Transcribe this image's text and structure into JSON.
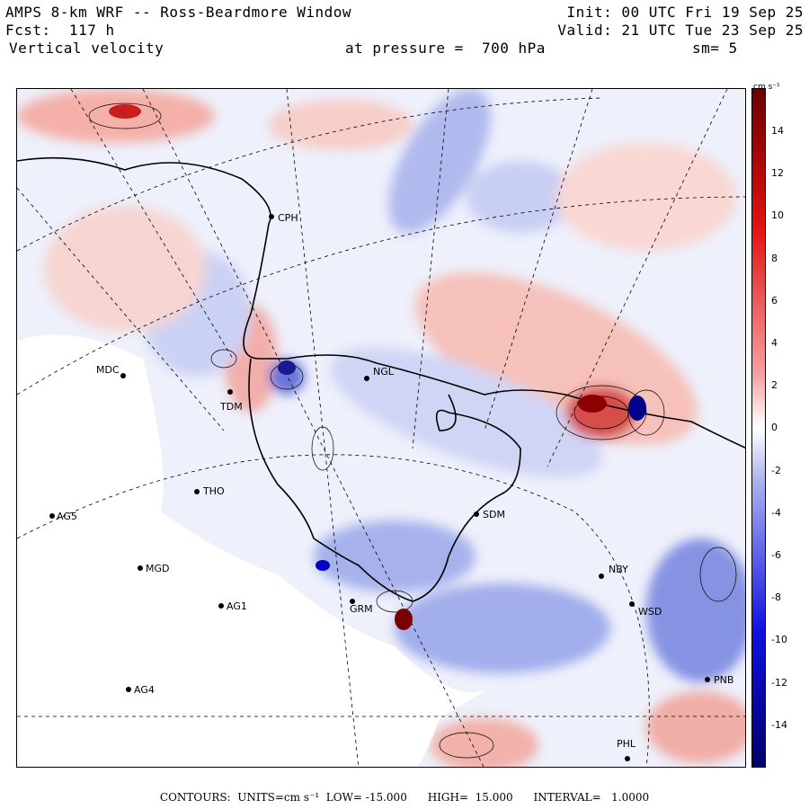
{
  "header": {
    "title": "AMPS 8-km WRF -- Ross-Beardmore Window",
    "forecast": "Fcst:  117 h",
    "field": "Vertical velocity",
    "pressure": "at pressure =  700 hPa",
    "init": "Init: 00 UTC Fri 19 Sep 25",
    "valid": "Valid: 21 UTC Tue 23 Sep 25",
    "smooth": "sm= 5"
  },
  "colorbar": {
    "units": "cm s⁻¹",
    "labels": [
      "14",
      "12",
      "10",
      "8",
      "6",
      "4",
      "2",
      "0",
      "-2",
      "-4",
      "-6",
      "-8",
      "-10",
      "-12",
      "-14"
    ],
    "top_color": "#6b0000",
    "bottom_color": "#00006b",
    "zero_color": "#ffffff"
  },
  "stations": [
    {
      "id": "CPH"
    },
    {
      "id": "MDC"
    },
    {
      "id": "TDM"
    },
    {
      "id": "NGL"
    },
    {
      "id": "THO"
    },
    {
      "id": "AG5"
    },
    {
      "id": "MGD"
    },
    {
      "id": "AG1"
    },
    {
      "id": "AG4"
    },
    {
      "id": "SDM"
    },
    {
      "id": "NBY"
    },
    {
      "id": "WSD"
    },
    {
      "id": "PNB"
    },
    {
      "id": "PHL"
    },
    {
      "id": "GRM"
    }
  ],
  "footer": "CONTOURS:  UNITS=cm s⁻¹  LOW= -15.000      HIGH=  15.000      INTERVAL=   1.0000"
}
